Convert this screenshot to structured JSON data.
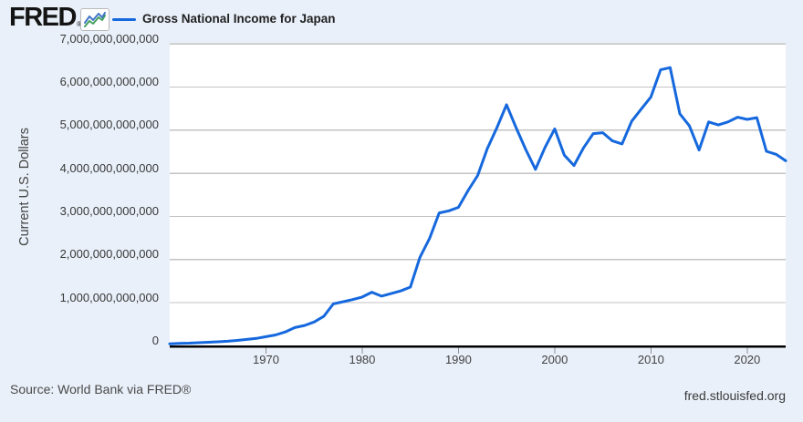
{
  "header": {
    "logo_text": "FRED",
    "registered_mark": "®",
    "logo_icon": {
      "name": "sparkline-chart-icon",
      "line1_color": "#4477c9",
      "line2_color": "#44a05c"
    },
    "legend": {
      "series_label": "Gross National Income for Japan",
      "swatch_color": "#1568dd"
    }
  },
  "footer": {
    "source_text": "Source: World Bank via FRED®",
    "site_text": "fred.stlouisfed.org"
  },
  "chart_data": {
    "type": "line",
    "title": "Gross National Income for Japan",
    "xlabel": "",
    "ylabel": "Current U.S. Dollars",
    "legend_position": "top-left",
    "grid": "horizontal-only",
    "line_color": "#1568dd",
    "xlim": [
      1960,
      2024
    ],
    "ylim_trillions": [
      0,
      7
    ],
    "x_ticks": [
      1970,
      1980,
      1990,
      2000,
      2010,
      2020
    ],
    "y_ticks": [
      {
        "value_trillions": 0,
        "label": "0"
      },
      {
        "value_trillions": 1,
        "label": "1,000,000,000,000"
      },
      {
        "value_trillions": 2,
        "label": "2,000,000,000,000"
      },
      {
        "value_trillions": 3,
        "label": "3,000,000,000,000"
      },
      {
        "value_trillions": 4,
        "label": "4,000,000,000,000"
      },
      {
        "value_trillions": 5,
        "label": "5,000,000,000,000"
      },
      {
        "value_trillions": 6,
        "label": "6,000,000,000,000"
      },
      {
        "value_trillions": 7,
        "label": "7,000,000,000,000"
      }
    ],
    "series": [
      {
        "name": "Gross National Income for Japan",
        "color": "#1568dd",
        "x": [
          1960,
          1961,
          1962,
          1963,
          1964,
          1965,
          1966,
          1967,
          1968,
          1969,
          1970,
          1971,
          1972,
          1973,
          1974,
          1975,
          1976,
          1977,
          1978,
          1979,
          1980,
          1981,
          1982,
          1983,
          1984,
          1985,
          1986,
          1987,
          1988,
          1989,
          1990,
          1991,
          1992,
          1993,
          1994,
          1995,
          1996,
          1997,
          1998,
          1999,
          2000,
          2001,
          2002,
          2003,
          2004,
          2005,
          2006,
          2007,
          2008,
          2009,
          2010,
          2011,
          2012,
          2013,
          2014,
          2015,
          2016,
          2017,
          2018,
          2019,
          2020,
          2021,
          2022,
          2023,
          2024
        ],
        "values_trillions": [
          0.044,
          0.054,
          0.06,
          0.069,
          0.081,
          0.09,
          0.104,
          0.122,
          0.145,
          0.17,
          0.209,
          0.25,
          0.32,
          0.42,
          0.47,
          0.55,
          0.68,
          0.97,
          1.02,
          1.07,
          1.13,
          1.24,
          1.15,
          1.21,
          1.27,
          1.36,
          2.05,
          2.49,
          3.08,
          3.13,
          3.21,
          3.6,
          3.95,
          4.57,
          5.06,
          5.59,
          5.05,
          4.55,
          4.09,
          4.6,
          5.03,
          4.42,
          4.18,
          4.59,
          4.92,
          4.94,
          4.75,
          4.68,
          5.21,
          5.49,
          5.77,
          6.4,
          6.45,
          5.38,
          5.1,
          4.54,
          5.19,
          5.12,
          5.19,
          5.3,
          5.25,
          5.29,
          4.51,
          4.44,
          4.29
        ]
      }
    ]
  }
}
